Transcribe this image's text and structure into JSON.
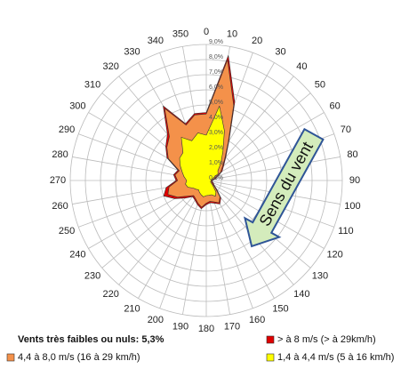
{
  "chart_data": {
    "type": "radar",
    "categories": [
      "0",
      "10",
      "20",
      "30",
      "40",
      "50",
      "60",
      "70",
      "80",
      "90",
      "100",
      "110",
      "120",
      "130",
      "140",
      "150",
      "160",
      "170",
      "180",
      "190",
      "200",
      "210",
      "220",
      "230",
      "240",
      "250",
      "260",
      "270",
      "280",
      "290",
      "300",
      "310",
      "320",
      "330",
      "340",
      "350"
    ],
    "series": [
      {
        "name": "> à 8 m/s (> à 29km/h)",
        "color": "#e00000",
        "values": [
          0.1,
          0.3,
          0.2,
          0.1,
          0.1,
          0.1,
          0.1,
          0.1,
          0.1,
          0.05,
          0.05,
          0.1,
          0.1,
          0.1,
          0.1,
          0.1,
          0.1,
          0.1,
          0.1,
          0.1,
          0.1,
          0.1,
          0.1,
          0.2,
          0.2,
          0.3,
          0.2,
          0.1,
          0.1,
          0.1,
          0.1,
          0.1,
          0.2,
          0.2,
          0.1,
          0.1
        ]
      },
      {
        "name": "4,4 à 8,0 m/s (16 à 29 km/h)",
        "color": "#f4914a",
        "values": [
          1.4,
          3.1,
          1.8,
          0.7,
          0.4,
          0.4,
          0.2,
          0.2,
          0.1,
          0.05,
          0.05,
          0.1,
          0.1,
          0.2,
          0.4,
          0.5,
          0.5,
          0.4,
          0.5,
          0.7,
          0.6,
          0.5,
          0.5,
          0.7,
          1.2,
          1.4,
          1.1,
          0.6,
          0.6,
          0.2,
          0.9,
          1.1,
          1.4,
          2.2,
          1.1,
          1.2
        ]
      },
      {
        "name": "1,4 à 4,4 m/s (5 à 16 km/h)",
        "color": "#ffff00",
        "values": [
          3.0,
          5.0,
          3.5,
          2.2,
          1.5,
          1.0,
          0.9,
          0.5,
          0.4,
          0.3,
          0.3,
          0.3,
          0.4,
          0.6,
          1.0,
          1.2,
          1.0,
          1.0,
          1.0,
          1.1,
          1.0,
          0.9,
          0.8,
          0.9,
          1.0,
          1.3,
          1.4,
          1.3,
          1.5,
          1.7,
          2.0,
          2.3,
          2.4,
          3.3,
          2.8,
          3.2
        ]
      }
    ],
    "rlim": [
      0,
      9
    ],
    "rticks": [
      {
        "value": 0,
        "label": "0,0%"
      },
      {
        "value": 1,
        "label": "1,0%"
      },
      {
        "value": 2,
        "label": "2,0%"
      },
      {
        "value": 3,
        "label": "3,0%"
      },
      {
        "value": 4,
        "label": "4,0%"
      },
      {
        "value": 5,
        "label": "5,0%"
      },
      {
        "value": 6,
        "label": "6,0%"
      },
      {
        "value": 7,
        "label": "7,0%"
      },
      {
        "value": 8,
        "label": "8,0%"
      },
      {
        "value": 9,
        "label": "9,0%"
      }
    ],
    "grid": true,
    "calm_note": "Vents très faibles ou nuls: 5,3%",
    "annotation": "Sens du vent"
  }
}
